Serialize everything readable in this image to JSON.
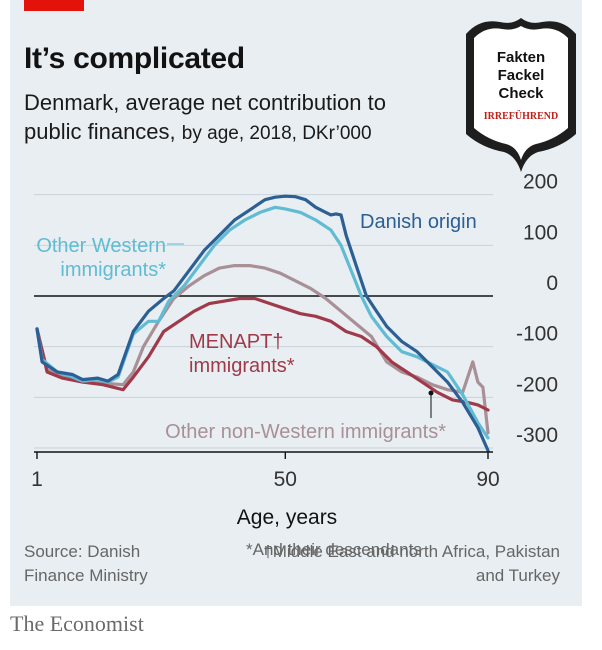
{
  "title": "It’s complicated",
  "subtitle_main": "Denmark, average net contribution to public finances,",
  "subtitle_detail": "by age, 2018, DKr’000",
  "source": "Source: Danish Finance Ministry",
  "note_star": "*And their descendants",
  "note_dagger": "†Middle East and north Africa, Pakistan and Turkey",
  "footer_brand": "The Economist",
  "stamp": {
    "line1": "Fakten",
    "line2": "Fackel",
    "line3": "Check",
    "verdict": "IRREFÜHREND",
    "verdict_color": "#c0201a"
  },
  "colors": {
    "accent": "#e3120b",
    "background": "#e8eef2"
  },
  "chart_data": {
    "type": "line",
    "xlabel": "Age, years",
    "ylabel": "",
    "xlim": [
      1,
      91
    ],
    "ylim": [
      -300,
      200
    ],
    "x_ticks": [
      1,
      50,
      90
    ],
    "y_ticks": [
      200,
      100,
      0,
      -100,
      -200,
      -300
    ],
    "grid": true,
    "legend": "inline labels",
    "series": [
      {
        "name": "Danish origin",
        "label_lines": [
          "Danish origin"
        ],
        "color": "#2c5f94",
        "points": [
          [
            1,
            -65
          ],
          [
            2,
            -130
          ],
          [
            5,
            -150
          ],
          [
            8,
            -155
          ],
          [
            10,
            -165
          ],
          [
            13,
            -162
          ],
          [
            15,
            -168
          ],
          [
            17,
            -155
          ],
          [
            20,
            -70
          ],
          [
            23,
            -30
          ],
          [
            26,
            -5
          ],
          [
            28,
            10
          ],
          [
            31,
            50
          ],
          [
            34,
            90
          ],
          [
            37,
            120
          ],
          [
            40,
            150
          ],
          [
            43,
            170
          ],
          [
            46,
            190
          ],
          [
            48,
            195
          ],
          [
            50,
            197
          ],
          [
            52,
            196
          ],
          [
            54,
            190
          ],
          [
            56,
            175
          ],
          [
            58,
            165
          ],
          [
            59,
            160
          ],
          [
            60,
            162
          ],
          [
            61,
            160
          ],
          [
            62,
            120
          ],
          [
            64,
            60
          ],
          [
            66,
            0
          ],
          [
            68,
            -30
          ],
          [
            70,
            -60
          ],
          [
            73,
            -90
          ],
          [
            76,
            -110
          ],
          [
            79,
            -140
          ],
          [
            82,
            -170
          ],
          [
            85,
            -210
          ],
          [
            88,
            -260
          ],
          [
            90,
            -305
          ]
        ]
      },
      {
        "name": "Other Western immigrants*",
        "label_lines": [
          "Other Western",
          "immigrants*"
        ],
        "color": "#5fbcd3",
        "points": [
          [
            1,
            -65
          ],
          [
            2,
            -125
          ],
          [
            5,
            -150
          ],
          [
            8,
            -160
          ],
          [
            10,
            -168
          ],
          [
            13,
            -165
          ],
          [
            15,
            -170
          ],
          [
            17,
            -160
          ],
          [
            20,
            -75
          ],
          [
            23,
            -50
          ],
          [
            25,
            -50
          ],
          [
            27,
            -10
          ],
          [
            30,
            20
          ],
          [
            33,
            60
          ],
          [
            36,
            100
          ],
          [
            39,
            130
          ],
          [
            42,
            150
          ],
          [
            45,
            165
          ],
          [
            48,
            175
          ],
          [
            50,
            172
          ],
          [
            53,
            165
          ],
          [
            56,
            150
          ],
          [
            59,
            130
          ],
          [
            61,
            100
          ],
          [
            63,
            50
          ],
          [
            65,
            0
          ],
          [
            67,
            -40
          ],
          [
            70,
            -80
          ],
          [
            73,
            -110
          ],
          [
            76,
            -120
          ],
          [
            79,
            -135
          ],
          [
            82,
            -150
          ],
          [
            85,
            -195
          ],
          [
            88,
            -250
          ],
          [
            90,
            -280
          ]
        ]
      },
      {
        "name": "Other non-Western immigrants*",
        "label_lines": [
          "Other non-Western immigrants*"
        ],
        "color": "#a89096",
        "points": [
          [
            1,
            -65
          ],
          [
            3,
            -145
          ],
          [
            6,
            -160
          ],
          [
            10,
            -170
          ],
          [
            14,
            -172
          ],
          [
            18,
            -175
          ],
          [
            20,
            -150
          ],
          [
            22,
            -100
          ],
          [
            25,
            -50
          ],
          [
            28,
            -5
          ],
          [
            31,
            20
          ],
          [
            34,
            40
          ],
          [
            37,
            55
          ],
          [
            40,
            60
          ],
          [
            43,
            60
          ],
          [
            46,
            55
          ],
          [
            49,
            45
          ],
          [
            52,
            30
          ],
          [
            55,
            15
          ],
          [
            58,
            -5
          ],
          [
            61,
            -30
          ],
          [
            64,
            -55
          ],
          [
            67,
            -80
          ],
          [
            70,
            -130
          ],
          [
            73,
            -150
          ],
          [
            76,
            -160
          ],
          [
            79,
            -175
          ],
          [
            82,
            -185
          ],
          [
            85,
            -190
          ],
          [
            87,
            -130
          ],
          [
            88,
            -170
          ],
          [
            89,
            -180
          ],
          [
            90,
            -270
          ]
        ]
      },
      {
        "name": "MENAPT† immigrants*",
        "label_lines": [
          "MENAPT†",
          "immigrants*"
        ],
        "color": "#a03a4a",
        "points": [
          [
            1,
            -65
          ],
          [
            3,
            -150
          ],
          [
            6,
            -162
          ],
          [
            10,
            -170
          ],
          [
            14,
            -175
          ],
          [
            18,
            -185
          ],
          [
            20,
            -160
          ],
          [
            23,
            -120
          ],
          [
            26,
            -70
          ],
          [
            29,
            -50
          ],
          [
            32,
            -30
          ],
          [
            35,
            -15
          ],
          [
            38,
            -10
          ],
          [
            41,
            -5
          ],
          [
            44,
            -5
          ],
          [
            47,
            -15
          ],
          [
            50,
            -25
          ],
          [
            53,
            -35
          ],
          [
            56,
            -40
          ],
          [
            59,
            -50
          ],
          [
            62,
            -70
          ],
          [
            65,
            -80
          ],
          [
            68,
            -100
          ],
          [
            71,
            -130
          ],
          [
            74,
            -150
          ],
          [
            77,
            -170
          ],
          [
            80,
            -190
          ],
          [
            83,
            -205
          ],
          [
            86,
            -210
          ],
          [
            88,
            -215
          ],
          [
            90,
            -225
          ]
        ]
      }
    ]
  }
}
